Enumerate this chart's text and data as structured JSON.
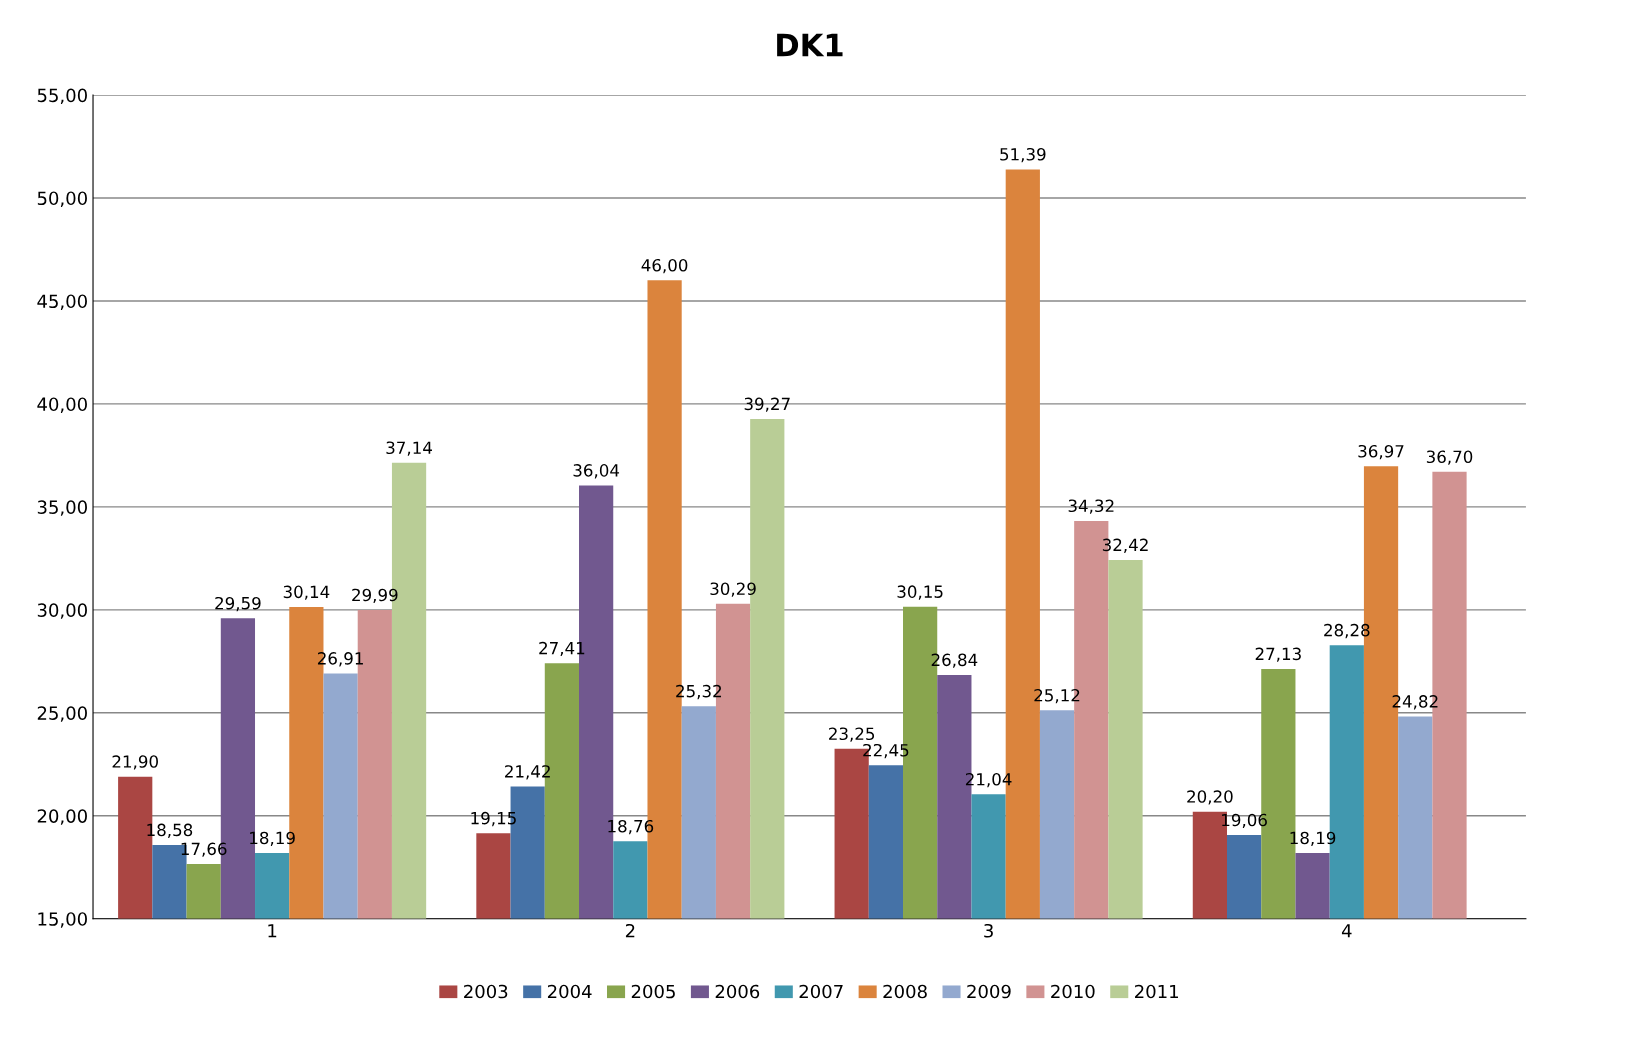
{
  "chart_data": {
    "type": "bar",
    "title": "DK1",
    "categories": [
      "1",
      "2",
      "3",
      "4"
    ],
    "series": [
      {
        "name": "2003",
        "color": "#aa4643",
        "values": [
          21.9,
          19.15,
          23.25,
          20.2
        ],
        "value_labels": [
          "21,90",
          "19,15",
          "23,25",
          "20,20"
        ]
      },
      {
        "name": "2004",
        "color": "#4572a7",
        "values": [
          18.58,
          21.42,
          22.45,
          19.06
        ],
        "value_labels": [
          "18,58",
          "21,42",
          "22,45",
          "19,06"
        ]
      },
      {
        "name": "2005",
        "color": "#89a54e",
        "values": [
          17.66,
          27.41,
          30.15,
          27.13
        ],
        "value_labels": [
          "17,66",
          "27,41",
          "30,15",
          "27,13"
        ]
      },
      {
        "name": "2006",
        "color": "#71588f",
        "values": [
          29.59,
          36.04,
          26.84,
          18.19
        ],
        "value_labels": [
          "29,59",
          "36,04",
          "26,84",
          "18,19"
        ]
      },
      {
        "name": "2007",
        "color": "#4198af",
        "values": [
          18.19,
          18.76,
          21.04,
          28.28
        ],
        "value_labels": [
          "18,19",
          "18,76",
          "21,04",
          "28,28"
        ]
      },
      {
        "name": "2008",
        "color": "#db843d",
        "values": [
          30.14,
          46.0,
          51.39,
          36.97
        ],
        "value_labels": [
          "30,14",
          "46,00",
          "51,39",
          "36,97"
        ]
      },
      {
        "name": "2009",
        "color": "#93a9cf",
        "values": [
          26.91,
          25.32,
          25.12,
          24.82
        ],
        "value_labels": [
          "26,91",
          "25,32",
          "25,12",
          "24,82"
        ]
      },
      {
        "name": "2010",
        "color": "#d19392",
        "values": [
          29.99,
          30.29,
          34.32,
          36.7
        ],
        "value_labels": [
          "29,99",
          "30,29",
          "34,32",
          "36,70"
        ]
      },
      {
        "name": "2011",
        "color": "#b9cd96",
        "values": [
          37.14,
          39.27,
          32.42,
          null
        ],
        "value_labels": [
          "37,14",
          "39,27",
          "32,42",
          null
        ]
      }
    ],
    "ylim": [
      15,
      55
    ],
    "yticks": [
      {
        "value": 15,
        "label": "15,00"
      },
      {
        "value": 20,
        "label": "20,00"
      },
      {
        "value": 25,
        "label": "25,00"
      },
      {
        "value": 30,
        "label": "30,00"
      },
      {
        "value": 35,
        "label": "35,00"
      },
      {
        "value": 40,
        "label": "40,00"
      },
      {
        "value": 45,
        "label": "45,00"
      },
      {
        "value": 50,
        "label": "50,00"
      },
      {
        "value": 55,
        "label": "55,00"
      }
    ],
    "grid": "y",
    "legend": "bottom"
  }
}
